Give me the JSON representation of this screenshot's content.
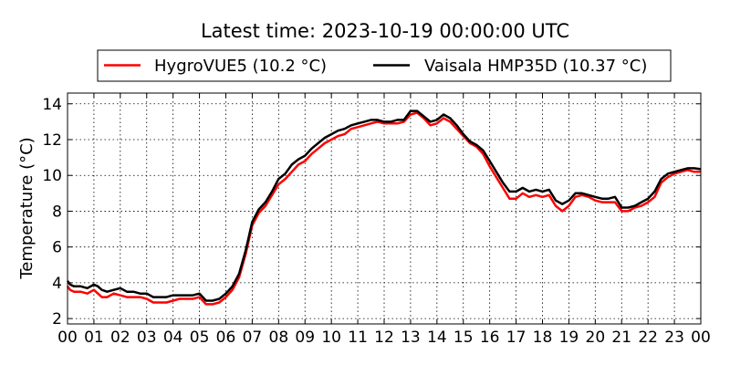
{
  "chart_data": {
    "type": "line",
    "title": "Latest time: 2023-10-19 00:00:00 UTC",
    "xlabel": "",
    "ylabel": "Temperature (°C)",
    "xlim": [
      0,
      24
    ],
    "ylim": [
      1.7,
      14.6
    ],
    "grid": true,
    "legend_position": "top",
    "x_ticks": [
      0,
      1,
      2,
      3,
      4,
      5,
      6,
      7,
      8,
      9,
      10,
      11,
      12,
      13,
      14,
      15,
      16,
      17,
      18,
      19,
      20,
      21,
      22,
      23,
      24
    ],
    "x_tick_labels": [
      "00",
      "01",
      "02",
      "03",
      "04",
      "05",
      "06",
      "07",
      "08",
      "09",
      "10",
      "11",
      "12",
      "13",
      "14",
      "15",
      "16",
      "17",
      "18",
      "19",
      "20",
      "21",
      "22",
      "23",
      "00"
    ],
    "y_ticks": [
      2,
      4,
      6,
      8,
      10,
      12,
      14
    ],
    "y_tick_labels": [
      "2",
      "4",
      "6",
      "8",
      "10",
      "12",
      "14"
    ],
    "series": [
      {
        "name": "HygroVUE5 (10.2 °C)",
        "color": "#ff0000",
        "x": [
          0,
          0.1,
          0.25,
          0.5,
          0.75,
          1,
          1.15,
          1.3,
          1.5,
          1.75,
          2,
          2.25,
          2.5,
          2.75,
          3,
          3.25,
          3.5,
          3.75,
          4,
          4.25,
          4.5,
          4.75,
          5,
          5.25,
          5.5,
          5.75,
          6,
          6.25,
          6.5,
          6.75,
          7,
          7.25,
          7.5,
          7.75,
          8,
          8.25,
          8.5,
          8.75,
          9,
          9.25,
          9.5,
          9.75,
          10,
          10.25,
          10.5,
          10.75,
          11,
          11.25,
          11.5,
          11.75,
          12,
          12.25,
          12.5,
          12.75,
          13,
          13.25,
          13.5,
          13.75,
          14,
          14.25,
          14.5,
          14.75,
          15,
          15.25,
          15.5,
          15.75,
          16,
          16.25,
          16.5,
          16.75,
          17,
          17.25,
          17.5,
          17.75,
          18,
          18.25,
          18.5,
          18.75,
          19,
          19.25,
          19.5,
          19.75,
          20,
          20.25,
          20.5,
          20.75,
          21,
          21.25,
          21.5,
          21.75,
          22,
          22.25,
          22.5,
          22.75,
          23,
          23.25,
          23.5,
          23.75,
          24
        ],
        "values": [
          3.8,
          3.6,
          3.5,
          3.5,
          3.4,
          3.6,
          3.4,
          3.2,
          3.2,
          3.4,
          3.3,
          3.2,
          3.2,
          3.2,
          3.1,
          2.9,
          2.9,
          2.9,
          3.0,
          3.1,
          3.1,
          3.1,
          3.2,
          2.8,
          2.8,
          2.9,
          3.2,
          3.6,
          4.3,
          5.6,
          7.2,
          7.9,
          8.3,
          8.9,
          9.5,
          9.8,
          10.2,
          10.6,
          10.8,
          11.2,
          11.5,
          11.8,
          12.0,
          12.2,
          12.3,
          12.6,
          12.7,
          12.8,
          12.9,
          13.0,
          12.9,
          12.9,
          12.9,
          13.0,
          13.4,
          13.5,
          13.2,
          12.8,
          12.9,
          13.2,
          13.0,
          12.6,
          12.2,
          11.8,
          11.6,
          11.2,
          10.5,
          9.9,
          9.3,
          8.7,
          8.7,
          9.0,
          8.8,
          8.9,
          8.8,
          8.9,
          8.3,
          8.0,
          8.3,
          8.8,
          8.9,
          8.8,
          8.6,
          8.5,
          8.5,
          8.5,
          8.0,
          8.0,
          8.2,
          8.3,
          8.5,
          8.8,
          9.6,
          9.9,
          10.1,
          10.2,
          10.3,
          10.2,
          10.2
        ]
      },
      {
        "name": "Vaisala HMP35D (10.37 °C)",
        "color": "#000000",
        "x": [
          0,
          0.1,
          0.25,
          0.5,
          0.75,
          1,
          1.15,
          1.3,
          1.5,
          1.75,
          2,
          2.25,
          2.5,
          2.75,
          3,
          3.25,
          3.5,
          3.75,
          4,
          4.25,
          4.5,
          4.75,
          5,
          5.25,
          5.5,
          5.75,
          6,
          6.25,
          6.5,
          6.75,
          7,
          7.25,
          7.5,
          7.75,
          8,
          8.25,
          8.5,
          8.75,
          9,
          9.25,
          9.5,
          9.75,
          10,
          10.25,
          10.5,
          10.75,
          11,
          11.25,
          11.5,
          11.75,
          12,
          12.25,
          12.5,
          12.75,
          13,
          13.25,
          13.5,
          13.75,
          14,
          14.25,
          14.5,
          14.75,
          15,
          15.25,
          15.5,
          15.75,
          16,
          16.25,
          16.5,
          16.75,
          17,
          17.25,
          17.5,
          17.75,
          18,
          18.25,
          18.5,
          18.75,
          19,
          19.25,
          19.5,
          19.75,
          20,
          20.25,
          20.5,
          20.75,
          21,
          21.25,
          21.5,
          21.75,
          22,
          22.25,
          22.5,
          22.75,
          23,
          23.25,
          23.5,
          23.75,
          24
        ],
        "values": [
          4.1,
          3.9,
          3.8,
          3.8,
          3.7,
          3.9,
          3.8,
          3.6,
          3.5,
          3.6,
          3.7,
          3.5,
          3.5,
          3.4,
          3.4,
          3.2,
          3.2,
          3.2,
          3.3,
          3.3,
          3.3,
          3.3,
          3.4,
          3.0,
          3.0,
          3.1,
          3.4,
          3.8,
          4.5,
          5.8,
          7.4,
          8.1,
          8.5,
          9.1,
          9.8,
          10.1,
          10.6,
          10.9,
          11.1,
          11.5,
          11.8,
          12.1,
          12.3,
          12.5,
          12.6,
          12.8,
          12.9,
          13.0,
          13.1,
          13.1,
          13.0,
          13.0,
          13.1,
          13.1,
          13.6,
          13.6,
          13.3,
          13.0,
          13.1,
          13.4,
          13.2,
          12.8,
          12.3,
          11.9,
          11.7,
          11.4,
          10.8,
          10.2,
          9.6,
          9.1,
          9.1,
          9.3,
          9.1,
          9.2,
          9.1,
          9.2,
          8.6,
          8.4,
          8.6,
          9.0,
          9.0,
          8.9,
          8.8,
          8.7,
          8.7,
          8.8,
          8.2,
          8.2,
          8.3,
          8.5,
          8.7,
          9.1,
          9.8,
          10.1,
          10.2,
          10.3,
          10.4,
          10.4,
          10.35
        ]
      }
    ]
  }
}
